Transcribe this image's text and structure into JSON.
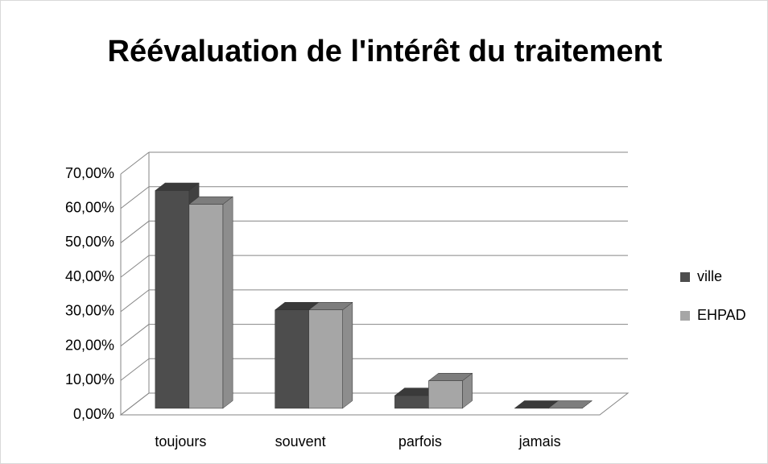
{
  "chart_data": {
    "type": "bar3d",
    "title": "Réévaluation de l'intérêt du traitement",
    "categories": [
      "toujours",
      "souvent",
      "parfois",
      "jamais"
    ],
    "series": [
      {
        "name": "ville",
        "color": "#4d4d4d",
        "values": [
          63.3,
          28.6,
          3.7,
          0
        ]
      },
      {
        "name": "EHPAD",
        "color": "#a6a6a6",
        "values": [
          59.3,
          28.6,
          8.0,
          0
        ]
      }
    ],
    "ylim": [
      0,
      70
    ],
    "yticks": [
      {
        "value": 0,
        "label": "0,00%"
      },
      {
        "value": 10,
        "label": "10,00%"
      },
      {
        "value": 20,
        "label": "20,00%"
      },
      {
        "value": 30,
        "label": "30,00%"
      },
      {
        "value": 40,
        "label": "40,00%"
      },
      {
        "value": 50,
        "label": "50,00%"
      },
      {
        "value": 60,
        "label": "60,00%"
      },
      {
        "value": 70,
        "label": "70,00%"
      }
    ],
    "grid": true,
    "legend": "right"
  }
}
